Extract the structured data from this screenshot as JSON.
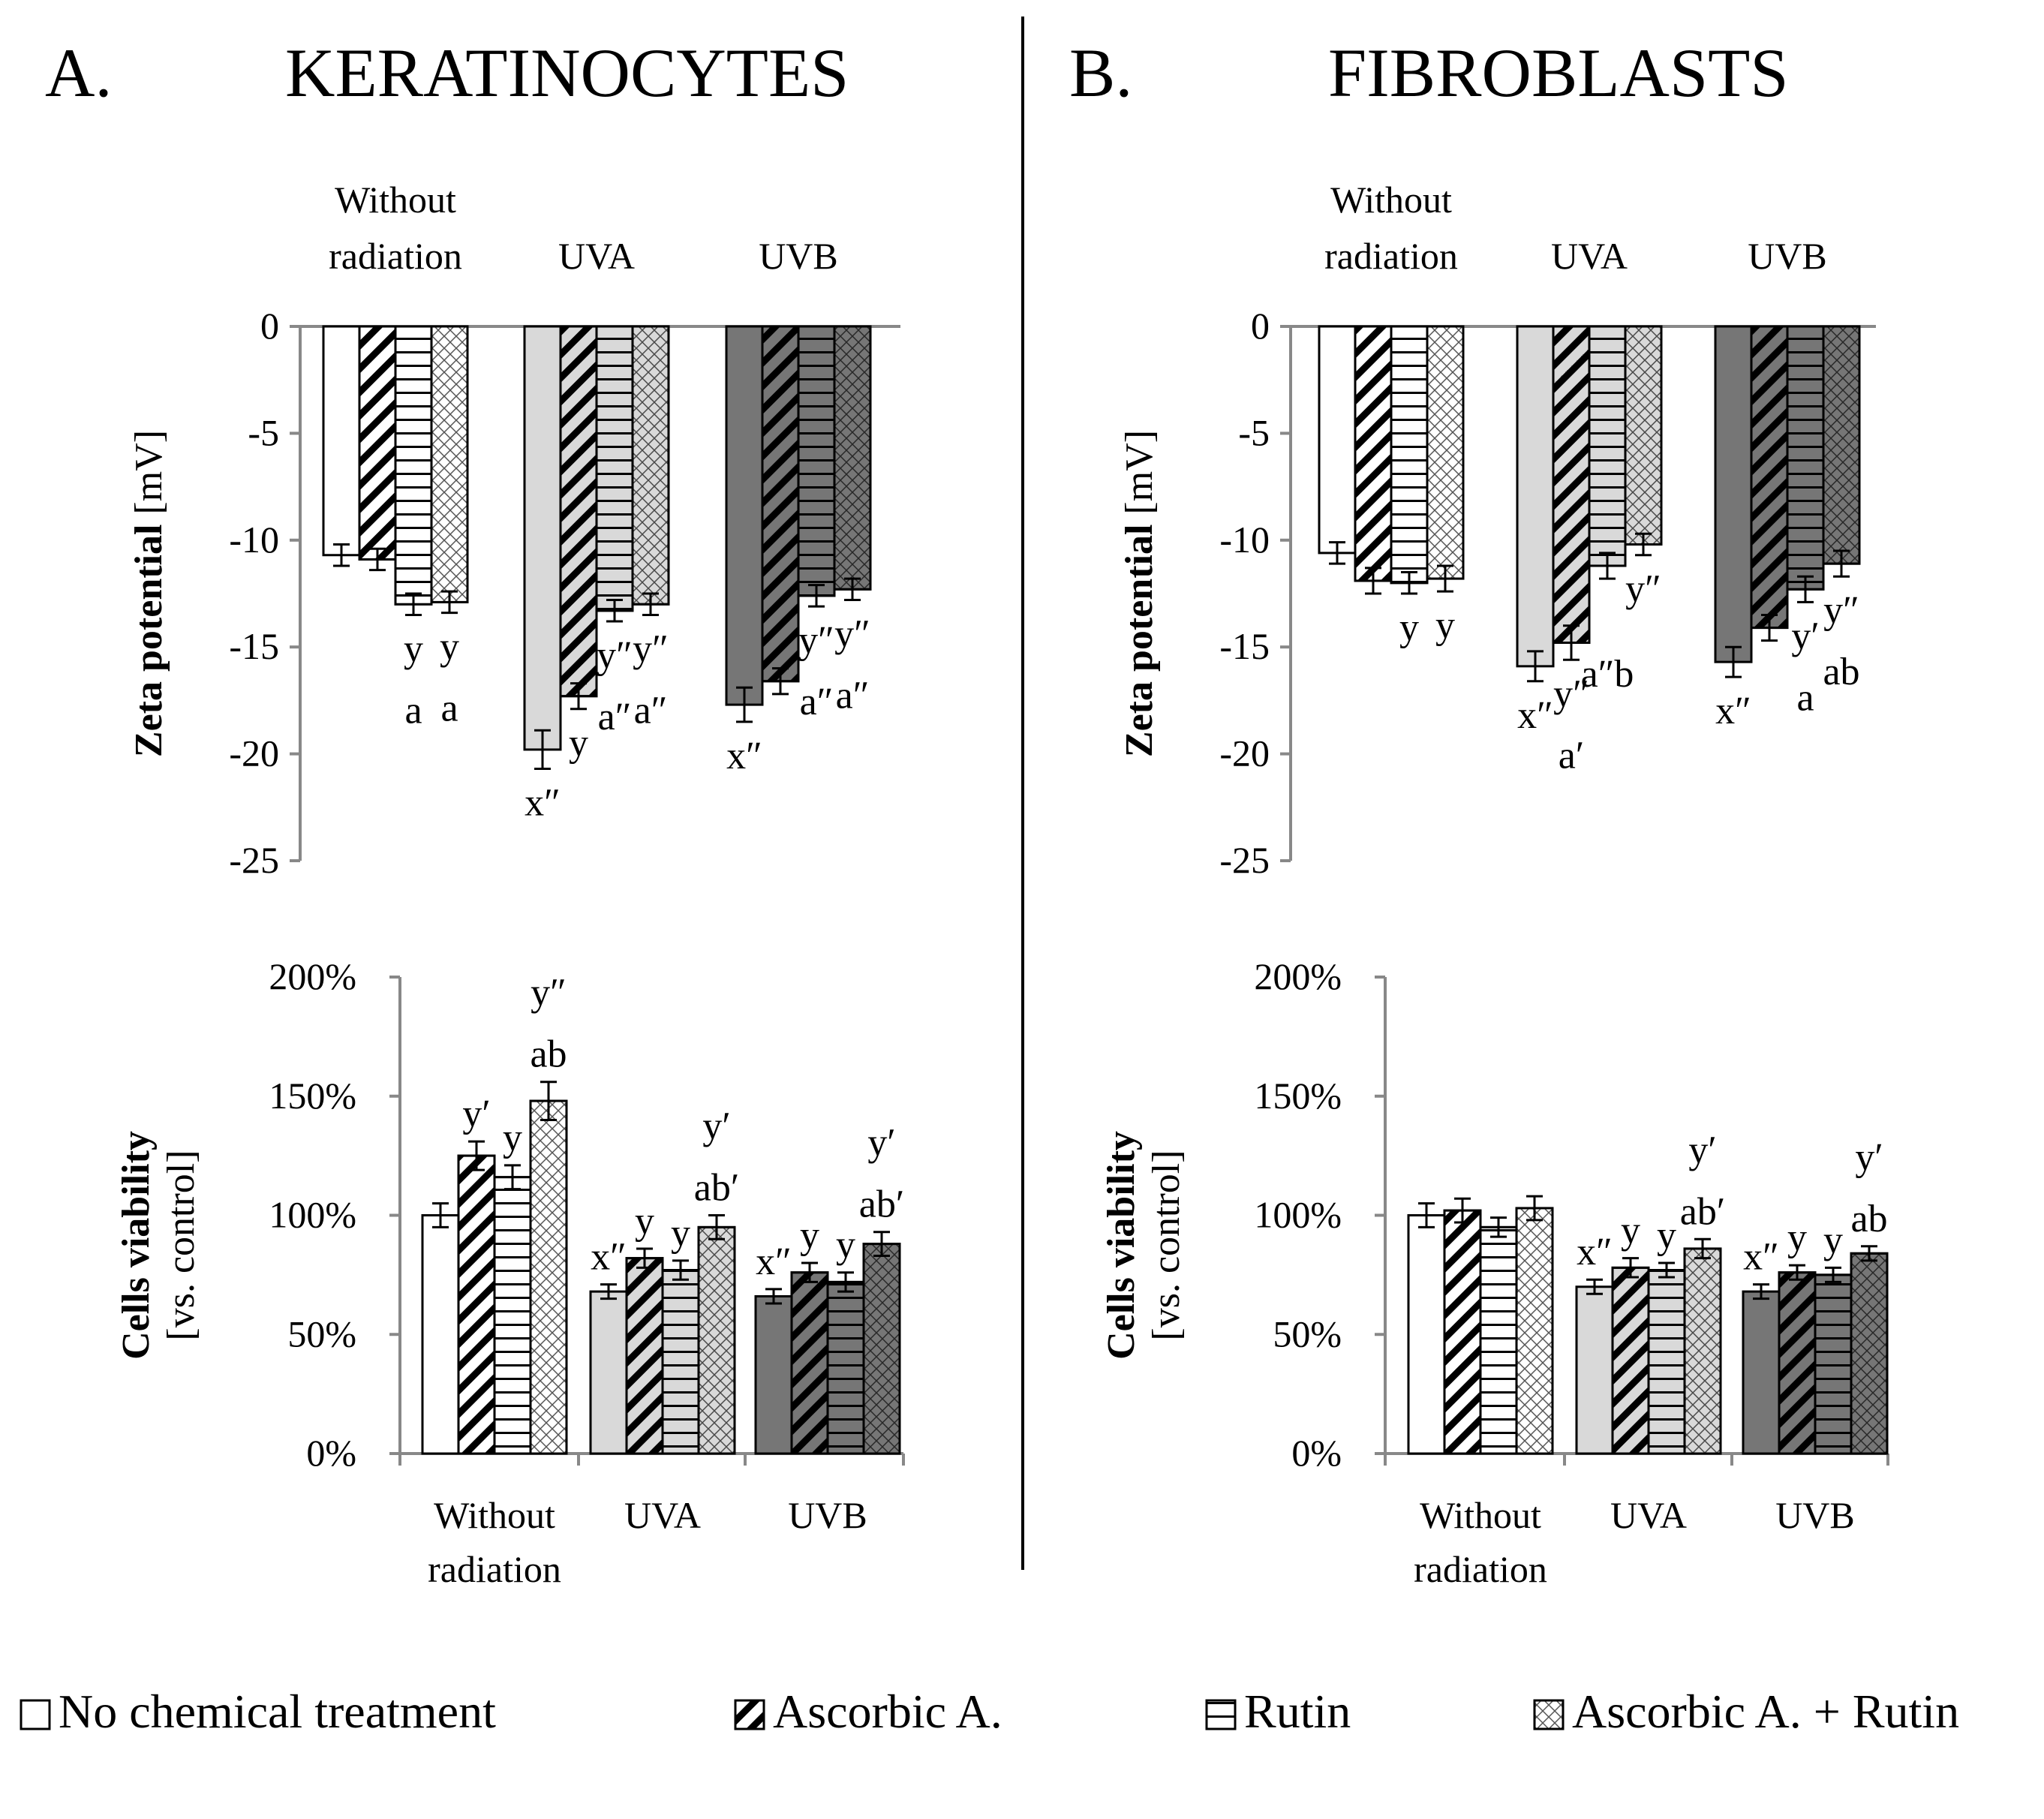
{
  "colors": {
    "none": "#ffffff",
    "uva": "#d9d9d9",
    "uvb": "#767676",
    "stroke": "#000000"
  },
  "legend": [
    {
      "label": "No chemical treatment",
      "pattern": "none"
    },
    {
      "label": "Ascorbic A.",
      "pattern": "diag"
    },
    {
      "label": "Rutin",
      "pattern": "horiz"
    },
    {
      "label": "Ascorbic A. + Rutin",
      "pattern": "cross"
    }
  ],
  "panels": [
    {
      "id": "A",
      "letter": "A.",
      "title": "KERATINOCYTES",
      "zeta": {
        "groups": [
          "Without radiation",
          "UVA",
          "UVB"
        ],
        "group_label_lines": [
          [
            "Without",
            "radiation"
          ],
          [
            "UVA"
          ],
          [
            "UVB"
          ]
        ],
        "ylabel_bold": "Zeta potential",
        "ylabel_rest": " [mV]",
        "ylim": [
          -25,
          0
        ],
        "ticks": [
          0,
          -5,
          -10,
          -15,
          -20,
          -25
        ],
        "values": [
          [
            -10.7,
            -10.9,
            -13.0,
            -12.9
          ],
          [
            -19.8,
            -17.3,
            -13.3,
            -13.0
          ],
          [
            -17.7,
            -16.6,
            -12.6,
            -12.3
          ]
        ],
        "errors": [
          [
            0.5,
            0.5,
            0.5,
            0.5
          ],
          [
            0.9,
            0.6,
            0.5,
            0.5
          ],
          [
            0.8,
            0.6,
            0.5,
            0.5
          ]
        ],
        "annotations": [
          [
            [
              "",
              ""
            ],
            [
              "",
              ""
            ],
            [
              "y",
              "a"
            ],
            [
              "y",
              "a"
            ]
          ],
          [
            [
              "x″",
              ""
            ],
            [
              "y",
              ""
            ],
            [
              "y″",
              "a″"
            ],
            [
              "y″",
              "a″"
            ]
          ],
          [
            [
              "x″",
              ""
            ],
            [
              "",
              ""
            ],
            [
              "y″",
              "a″"
            ],
            [
              "y″",
              "a″"
            ]
          ]
        ]
      },
      "viability": {
        "groups": [
          "Without radiation",
          "UVA",
          "UVB"
        ],
        "group_label_lines": [
          [
            "Without",
            "radiation"
          ],
          [
            "UVA"
          ],
          [
            "UVB"
          ]
        ],
        "ylabel_bold": "Cells viability",
        "ylabel_rest": "[vs. control]",
        "ylim": [
          0,
          200
        ],
        "ticks": [
          "0%",
          "50%",
          "100%",
          "150%",
          "200%"
        ],
        "tick_values": [
          0,
          50,
          100,
          150,
          200
        ],
        "values": [
          [
            100,
            125,
            116,
            148
          ],
          [
            68,
            82,
            77,
            95
          ],
          [
            66,
            76,
            72,
            88
          ]
        ],
        "errors": [
          [
            5,
            6,
            5,
            8
          ],
          [
            3,
            4,
            4,
            5
          ],
          [
            3,
            4,
            4,
            5
          ]
        ],
        "annotations": [
          [
            [
              "",
              ""
            ],
            [
              "y′",
              ""
            ],
            [
              "y",
              ""
            ],
            [
              "y″",
              "ab"
            ]
          ],
          [
            [
              "x″",
              ""
            ],
            [
              "y",
              ""
            ],
            [
              "y",
              ""
            ],
            [
              "y′",
              "ab′"
            ]
          ],
          [
            [
              "x″",
              ""
            ],
            [
              "y",
              ""
            ],
            [
              "y",
              ""
            ],
            [
              "y′",
              "ab′"
            ]
          ]
        ]
      }
    },
    {
      "id": "B",
      "letter": "B.",
      "title": "FIBROBLASTS",
      "zeta": {
        "groups": [
          "Without radiation",
          "UVA",
          "UVB"
        ],
        "group_label_lines": [
          [
            "Without",
            "radiation"
          ],
          [
            "UVA"
          ],
          [
            "UVB"
          ]
        ],
        "ylabel_bold": "Zeta potential",
        "ylabel_rest": " [mV]",
        "ylim": [
          -25,
          0
        ],
        "ticks": [
          0,
          -5,
          -10,
          -15,
          -20,
          -25
        ],
        "values": [
          [
            -10.6,
            -11.9,
            -12.0,
            -11.8
          ],
          [
            -15.9,
            -14.8,
            -11.2,
            -10.2
          ],
          [
            -15.7,
            -14.1,
            -12.3,
            -11.1
          ]
        ],
        "errors": [
          [
            0.5,
            0.6,
            0.5,
            0.6
          ],
          [
            0.7,
            0.8,
            0.6,
            0.5
          ],
          [
            0.7,
            0.6,
            0.6,
            0.6
          ]
        ],
        "annotations": [
          [
            [
              "",
              ""
            ],
            [
              "",
              ""
            ],
            [
              "y",
              ""
            ],
            [
              "y",
              ""
            ]
          ],
          [
            [
              "x″",
              ""
            ],
            [
              "y″",
              "a′"
            ],
            [
              "",
              "a″b"
            ],
            [
              "y″",
              ""
            ]
          ],
          [
            [
              "x″",
              ""
            ],
            [
              "",
              ""
            ],
            [
              "y′",
              "a"
            ],
            [
              "y″",
              "ab"
            ]
          ]
        ]
      },
      "viability": {
        "groups": [
          "Without radiation",
          "UVA",
          "UVB"
        ],
        "group_label_lines": [
          [
            "Without",
            "radiation"
          ],
          [
            "UVA"
          ],
          [
            "UVB"
          ]
        ],
        "ylabel_bold": "Cells viability",
        "ylabel_rest": "[vs. control]",
        "ylim": [
          0,
          200
        ],
        "ticks": [
          "0%",
          "50%",
          "100%",
          "150%",
          "200%"
        ],
        "tick_values": [
          0,
          50,
          100,
          150,
          200
        ],
        "values": [
          [
            100,
            102,
            95,
            103
          ],
          [
            70,
            78,
            77,
            86
          ],
          [
            68,
            76,
            75,
            84
          ]
        ],
        "errors": [
          [
            5,
            5,
            4,
            5
          ],
          [
            3,
            4,
            3,
            4
          ],
          [
            3,
            3,
            3,
            3
          ]
        ],
        "annotations": [
          [
            [
              "",
              ""
            ],
            [
              "",
              ""
            ],
            [
              "",
              ""
            ],
            [
              "",
              ""
            ]
          ],
          [
            [
              "x″",
              ""
            ],
            [
              "y",
              ""
            ],
            [
              "y",
              ""
            ],
            [
              "y′",
              "ab′"
            ]
          ],
          [
            [
              "x″",
              ""
            ],
            [
              "y",
              ""
            ],
            [
              "y",
              ""
            ],
            [
              "y′",
              "ab"
            ]
          ]
        ]
      }
    }
  ]
}
